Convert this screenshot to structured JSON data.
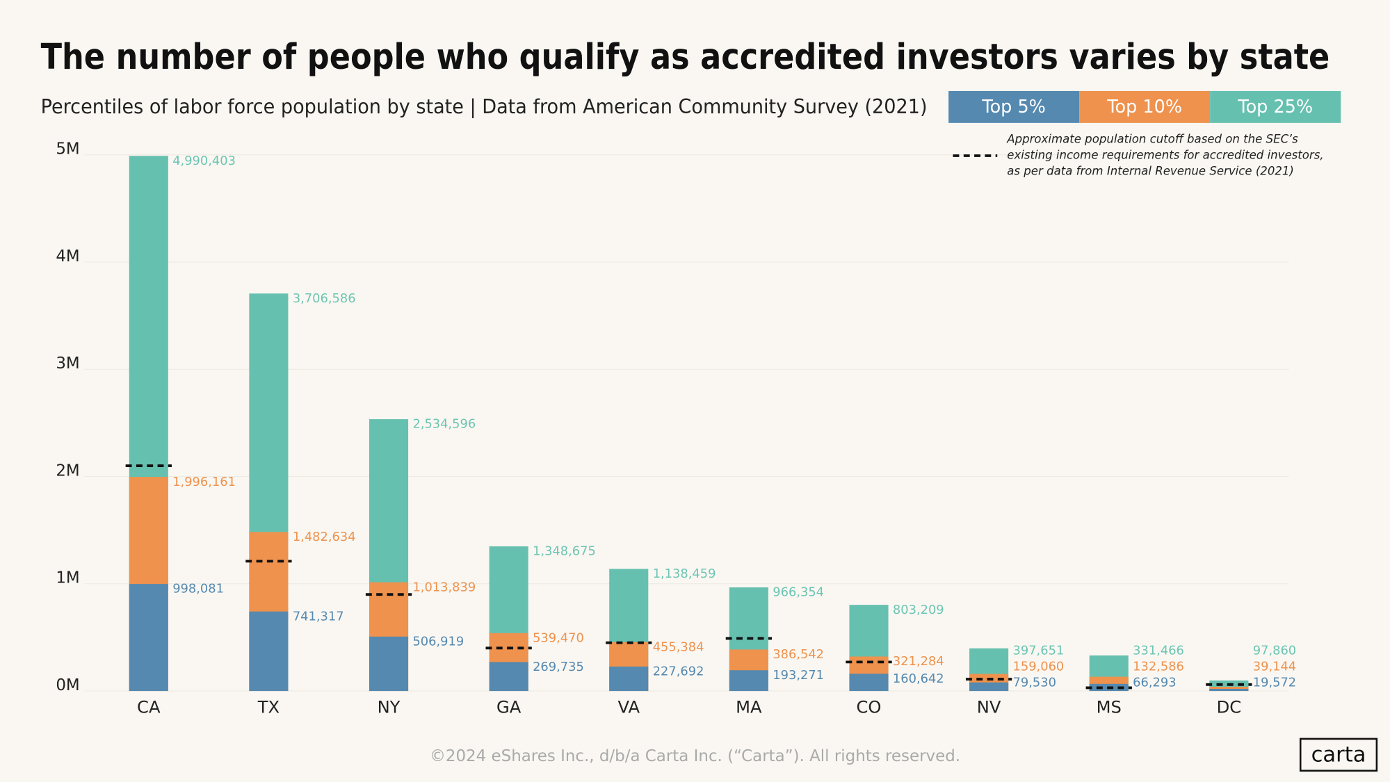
{
  "chart_data": {
    "type": "bar",
    "title": "The number of people who qualify as accredited investors varies by state",
    "subtitle": "Percentiles of labor force population by state | Data from American Community  Survey (2021)",
    "categories": [
      "CA",
      "TX",
      "NY",
      "GA",
      "VA",
      "MA",
      "CO",
      "NV",
      "MS",
      "DC"
    ],
    "series": [
      {
        "name": "Top 25%",
        "color": "#66c0af",
        "label_color": "#6cc5b3",
        "values": [
          4990403,
          3706586,
          2534596,
          1348675,
          1138459,
          966354,
          803209,
          397651,
          331466,
          97860
        ],
        "value_labels": [
          "4,990,403",
          "3,706,586",
          "2,534,596",
          "1,348,675",
          "1,138,459",
          "966,354",
          "803,209",
          "397,651",
          "331,466",
          "97,860"
        ]
      },
      {
        "name": "Top 10%",
        "color": "#ee924d",
        "label_color": "#ee924d",
        "values": [
          1996161,
          1482634,
          1013839,
          539470,
          455384,
          386542,
          321284,
          159060,
          132586,
          39144
        ],
        "value_labels": [
          "1,996,161",
          "1,482,634",
          "1,013,839",
          "539,470",
          "455,384",
          "386,542",
          "321,284",
          "159,060",
          "132,586",
          "39,144"
        ]
      },
      {
        "name": "Top 5%",
        "color": "#5589b0",
        "label_color": "#5589b0",
        "values": [
          998081,
          741317,
          506919,
          269735,
          227692,
          193271,
          160642,
          79530,
          66293,
          19572
        ],
        "value_labels": [
          "998,081",
          "741,317",
          "506,919",
          "269,735",
          "227,692",
          "193,271",
          "160,642",
          "79,530",
          "66,293",
          "19,572"
        ]
      }
    ],
    "legend_order": [
      2,
      1,
      0
    ],
    "cutoff": {
      "color": "#111111",
      "note_lines": [
        "Approximate population cutoff based on the SEC’s",
        "existing income requirements for accredited investors,",
        "as per data from Internal Revenue Service (2021)"
      ],
      "values": [
        2100000,
        1210000,
        900000,
        400000,
        450000,
        490000,
        270000,
        110000,
        30000,
        60000
      ]
    },
    "ylim": [
      0,
      5000000
    ],
    "yticks": [
      {
        "value": 0,
        "label": "0M"
      },
      {
        "value": 1000000,
        "label": "1M"
      },
      {
        "value": 2000000,
        "label": "2M"
      },
      {
        "value": 3000000,
        "label": "3M"
      },
      {
        "value": 4000000,
        "label": "4M"
      },
      {
        "value": 5000000,
        "label": "5M"
      }
    ],
    "grid": true,
    "footer": "©2024 eShares Inc., d/b/a Carta Inc. (“Carta”). All rights reserved.",
    "logo": "carta"
  }
}
